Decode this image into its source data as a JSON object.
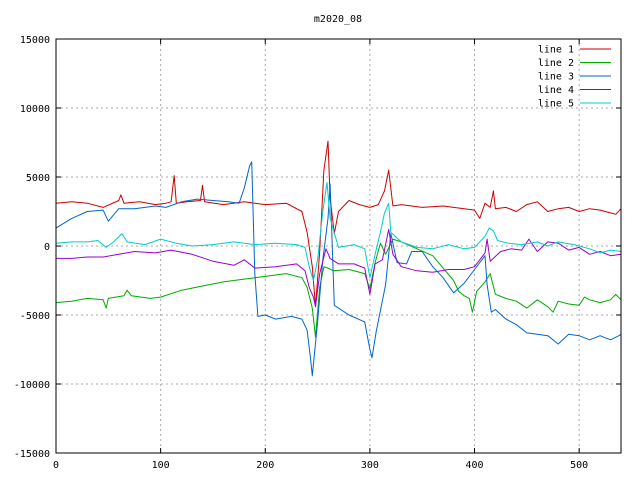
{
  "chart_data": {
    "type": "line",
    "title": "m2020_08",
    "xlabel": "",
    "ylabel": "",
    "xlim": [
      0,
      540
    ],
    "ylim": [
      -15000,
      15000
    ],
    "x_ticks": [
      0,
      100,
      200,
      300,
      400,
      500
    ],
    "y_ticks": [
      -15000,
      -10000,
      -5000,
      0,
      5000,
      10000,
      15000
    ],
    "grid": true,
    "legend_position": "top-right",
    "series": [
      {
        "name": "line 1",
        "color": "#cc0000",
        "points": [
          [
            0,
            3100
          ],
          [
            15,
            3200
          ],
          [
            30,
            3100
          ],
          [
            45,
            2800
          ],
          [
            60,
            3300
          ],
          [
            62,
            3700
          ],
          [
            65,
            3100
          ],
          [
            80,
            3200
          ],
          [
            95,
            3000
          ],
          [
            105,
            3100
          ],
          [
            110,
            3200
          ],
          [
            113,
            5100
          ],
          [
            115,
            3100
          ],
          [
            125,
            3200
          ],
          [
            138,
            3300
          ],
          [
            140,
            4400
          ],
          [
            142,
            3200
          ],
          [
            160,
            3000
          ],
          [
            180,
            3200
          ],
          [
            200,
            3000
          ],
          [
            220,
            3100
          ],
          [
            235,
            2500
          ],
          [
            240,
            1000
          ],
          [
            245,
            -1500
          ],
          [
            248,
            -4400
          ],
          [
            252,
            -400
          ],
          [
            256,
            5500
          ],
          [
            260,
            7600
          ],
          [
            262,
            3500
          ],
          [
            266,
            900
          ],
          [
            270,
            2500
          ],
          [
            280,
            3300
          ],
          [
            290,
            3000
          ],
          [
            300,
            2800
          ],
          [
            308,
            3000
          ],
          [
            314,
            4000
          ],
          [
            318,
            5500
          ],
          [
            322,
            2900
          ],
          [
            330,
            3000
          ],
          [
            350,
            2800
          ],
          [
            370,
            2900
          ],
          [
            390,
            2700
          ],
          [
            400,
            2600
          ],
          [
            405,
            2000
          ],
          [
            410,
            3100
          ],
          [
            415,
            2800
          ],
          [
            418,
            4000
          ],
          [
            420,
            2700
          ],
          [
            430,
            2800
          ],
          [
            440,
            2500
          ],
          [
            450,
            3000
          ],
          [
            460,
            3200
          ],
          [
            470,
            2500
          ],
          [
            480,
            2700
          ],
          [
            490,
            2800
          ],
          [
            500,
            2500
          ],
          [
            510,
            2700
          ],
          [
            520,
            2600
          ],
          [
            530,
            2400
          ],
          [
            535,
            2300
          ],
          [
            540,
            2700
          ]
        ]
      },
      {
        "name": "line 2",
        "color": "#00aa00",
        "points": [
          [
            0,
            -4100
          ],
          [
            15,
            -4000
          ],
          [
            30,
            -3800
          ],
          [
            45,
            -3900
          ],
          [
            48,
            -4500
          ],
          [
            50,
            -3800
          ],
          [
            65,
            -3600
          ],
          [
            68,
            -3200
          ],
          [
            72,
            -3600
          ],
          [
            90,
            -3800
          ],
          [
            100,
            -3700
          ],
          [
            120,
            -3200
          ],
          [
            140,
            -2900
          ],
          [
            160,
            -2600
          ],
          [
            180,
            -2400
          ],
          [
            200,
            -2200
          ],
          [
            220,
            -2000
          ],
          [
            235,
            -2300
          ],
          [
            240,
            -3000
          ],
          [
            245,
            -4500
          ],
          [
            248,
            -6600
          ],
          [
            252,
            -3000
          ],
          [
            256,
            -1500
          ],
          [
            260,
            -1600
          ],
          [
            265,
            -1800
          ],
          [
            280,
            -1700
          ],
          [
            295,
            -2000
          ],
          [
            300,
            -3100
          ],
          [
            305,
            -1200
          ],
          [
            310,
            200
          ],
          [
            315,
            -600
          ],
          [
            322,
            500
          ],
          [
            330,
            300
          ],
          [
            345,
            -200
          ],
          [
            360,
            -700
          ],
          [
            370,
            -1600
          ],
          [
            380,
            -2500
          ],
          [
            385,
            -3300
          ],
          [
            390,
            -3600
          ],
          [
            395,
            -3800
          ],
          [
            398,
            -4800
          ],
          [
            402,
            -3300
          ],
          [
            410,
            -2600
          ],
          [
            415,
            -2000
          ],
          [
            420,
            -3500
          ],
          [
            430,
            -3800
          ],
          [
            440,
            -4000
          ],
          [
            450,
            -4500
          ],
          [
            460,
            -3900
          ],
          [
            470,
            -4400
          ],
          [
            475,
            -4800
          ],
          [
            480,
            -4000
          ],
          [
            490,
            -4200
          ],
          [
            500,
            -4300
          ],
          [
            505,
            -3700
          ],
          [
            510,
            -3900
          ],
          [
            520,
            -4100
          ],
          [
            530,
            -3900
          ],
          [
            535,
            -3500
          ],
          [
            540,
            -3900
          ]
        ]
      },
      {
        "name": "line 3",
        "color": "#0066cc",
        "points": [
          [
            0,
            1300
          ],
          [
            15,
            2000
          ],
          [
            30,
            2500
          ],
          [
            45,
            2600
          ],
          [
            50,
            1800
          ],
          [
            60,
            2700
          ],
          [
            75,
            2700
          ],
          [
            95,
            2900
          ],
          [
            105,
            2800
          ],
          [
            120,
            3200
          ],
          [
            135,
            3400
          ],
          [
            150,
            3300
          ],
          [
            165,
            3200
          ],
          [
            175,
            3100
          ],
          [
            180,
            4200
          ],
          [
            185,
            5800
          ],
          [
            187,
            6100
          ],
          [
            190,
            -2000
          ],
          [
            193,
            -5100
          ],
          [
            200,
            -5000
          ],
          [
            210,
            -5300
          ],
          [
            225,
            -5100
          ],
          [
            235,
            -5300
          ],
          [
            240,
            -6100
          ],
          [
            243,
            -8000
          ],
          [
            245,
            -9400
          ],
          [
            250,
            -5500
          ],
          [
            255,
            -1000
          ],
          [
            260,
            2000
          ],
          [
            262,
            4500
          ],
          [
            266,
            -4300
          ],
          [
            280,
            -5000
          ],
          [
            295,
            -5500
          ],
          [
            300,
            -7500
          ],
          [
            302,
            -8100
          ],
          [
            306,
            -6200
          ],
          [
            315,
            -2800
          ],
          [
            320,
            900
          ],
          [
            326,
            -1200
          ],
          [
            335,
            -1300
          ],
          [
            340,
            -400
          ],
          [
            350,
            -400
          ],
          [
            360,
            -1500
          ],
          [
            370,
            -2300
          ],
          [
            380,
            -3400
          ],
          [
            390,
            -2700
          ],
          [
            400,
            -1700
          ],
          [
            410,
            -700
          ],
          [
            412,
            -2800
          ],
          [
            416,
            -4800
          ],
          [
            420,
            -4600
          ],
          [
            430,
            -5300
          ],
          [
            440,
            -5700
          ],
          [
            450,
            -6300
          ],
          [
            460,
            -6400
          ],
          [
            470,
            -6500
          ],
          [
            480,
            -7100
          ],
          [
            490,
            -6400
          ],
          [
            500,
            -6500
          ],
          [
            510,
            -6800
          ],
          [
            520,
            -6500
          ],
          [
            530,
            -6800
          ],
          [
            538,
            -6500
          ],
          [
            540,
            -6400
          ]
        ]
      },
      {
        "name": "line 4",
        "color": "#9900cc",
        "points": [
          [
            0,
            -900
          ],
          [
            15,
            -900
          ],
          [
            30,
            -800
          ],
          [
            45,
            -800
          ],
          [
            60,
            -600
          ],
          [
            75,
            -400
          ],
          [
            95,
            -500
          ],
          [
            110,
            -300
          ],
          [
            130,
            -600
          ],
          [
            150,
            -1100
          ],
          [
            170,
            -1400
          ],
          [
            180,
            -1000
          ],
          [
            190,
            -1600
          ],
          [
            210,
            -1500
          ],
          [
            230,
            -1300
          ],
          [
            238,
            -1800
          ],
          [
            242,
            -3000
          ],
          [
            246,
            -3700
          ],
          [
            248,
            -4400
          ],
          [
            252,
            -2000
          ],
          [
            258,
            -200
          ],
          [
            262,
            -900
          ],
          [
            270,
            -1300
          ],
          [
            285,
            -1300
          ],
          [
            295,
            -1600
          ],
          [
            300,
            -3500
          ],
          [
            305,
            -1300
          ],
          [
            312,
            -1000
          ],
          [
            318,
            1200
          ],
          [
            322,
            -600
          ],
          [
            330,
            -1500
          ],
          [
            345,
            -1800
          ],
          [
            360,
            -1900
          ],
          [
            375,
            -1700
          ],
          [
            390,
            -1700
          ],
          [
            400,
            -1500
          ],
          [
            410,
            -500
          ],
          [
            412,
            500
          ],
          [
            415,
            -1100
          ],
          [
            425,
            -400
          ],
          [
            435,
            -200
          ],
          [
            445,
            -300
          ],
          [
            452,
            500
          ],
          [
            460,
            -400
          ],
          [
            470,
            300
          ],
          [
            480,
            200
          ],
          [
            490,
            -300
          ],
          [
            500,
            -100
          ],
          [
            510,
            -600
          ],
          [
            520,
            -400
          ],
          [
            530,
            -700
          ],
          [
            540,
            -600
          ]
        ]
      },
      {
        "name": "line 5",
        "color": "#00cccc",
        "points": [
          [
            0,
            200
          ],
          [
            15,
            300
          ],
          [
            30,
            300
          ],
          [
            40,
            400
          ],
          [
            48,
            -100
          ],
          [
            55,
            300
          ],
          [
            63,
            900
          ],
          [
            68,
            300
          ],
          [
            85,
            100
          ],
          [
            100,
            500
          ],
          [
            115,
            200
          ],
          [
            130,
            0
          ],
          [
            150,
            100
          ],
          [
            170,
            300
          ],
          [
            190,
            100
          ],
          [
            210,
            200
          ],
          [
            230,
            100
          ],
          [
            238,
            -100
          ],
          [
            242,
            -1500
          ],
          [
            246,
            -2500
          ],
          [
            250,
            -1000
          ],
          [
            255,
            2500
          ],
          [
            259,
            4600
          ],
          [
            262,
            2000
          ],
          [
            270,
            -100
          ],
          [
            285,
            100
          ],
          [
            295,
            -200
          ],
          [
            300,
            -2300
          ],
          [
            305,
            -600
          ],
          [
            310,
            1000
          ],
          [
            314,
            2400
          ],
          [
            318,
            3100
          ],
          [
            320,
            1000
          ],
          [
            330,
            300
          ],
          [
            345,
            -100
          ],
          [
            360,
            -200
          ],
          [
            375,
            100
          ],
          [
            390,
            -200
          ],
          [
            400,
            -100
          ],
          [
            410,
            700
          ],
          [
            414,
            1300
          ],
          [
            418,
            1100
          ],
          [
            422,
            400
          ],
          [
            432,
            200
          ],
          [
            445,
            100
          ],
          [
            460,
            300
          ],
          [
            470,
            0
          ],
          [
            480,
            300
          ],
          [
            495,
            100
          ],
          [
            510,
            -200
          ],
          [
            520,
            -500
          ],
          [
            530,
            -300
          ],
          [
            540,
            -400
          ]
        ]
      }
    ]
  }
}
